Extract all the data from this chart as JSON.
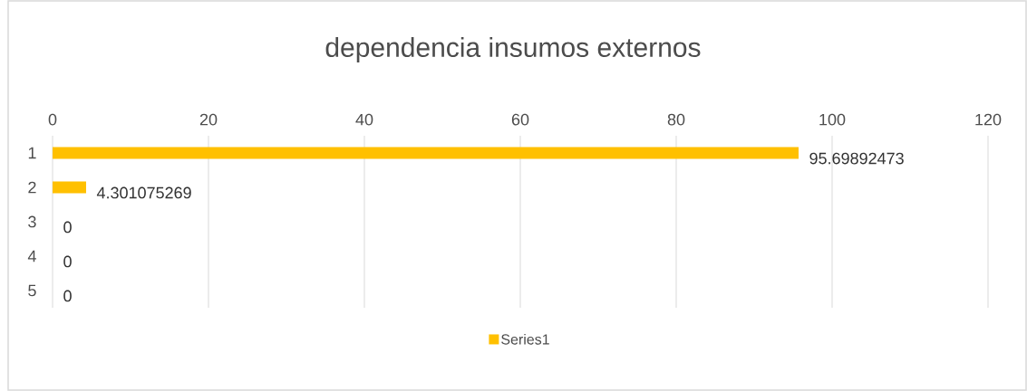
{
  "chart_data": {
    "type": "bar",
    "orientation": "horizontal",
    "title": "dependencia insumos externos",
    "categories": [
      "1",
      "2",
      "3",
      "4",
      "5"
    ],
    "series": [
      {
        "name": "Series1",
        "color": "#ffc000",
        "values": [
          95.69892473,
          4.301075269,
          0,
          0,
          0
        ]
      }
    ],
    "xlim": [
      0,
      120
    ],
    "xticks": [
      0,
      20,
      40,
      60,
      80,
      100,
      120
    ],
    "grid": "x",
    "legend": "bottom",
    "data_labels": true
  }
}
